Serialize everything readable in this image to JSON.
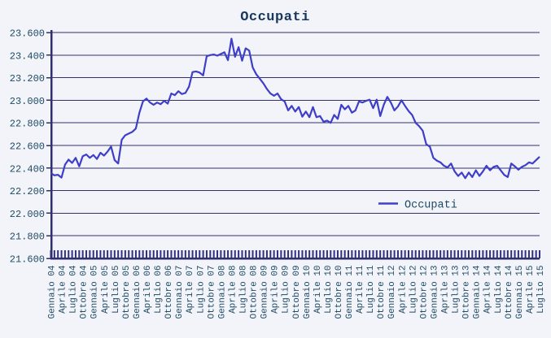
{
  "title": "Occupati",
  "colors": {
    "background": "#f3f4fa",
    "grid": "#32326b",
    "axis": "#2f2f6e",
    "month_tick": "#30307e",
    "series_line": "#3e3ec9",
    "label_text": "#1d4a63",
    "title_text": "#17375d"
  },
  "chart_data": {
    "type": "line",
    "title": "Occupati",
    "legend": [
      "Occupati"
    ],
    "legend_position": "inside lower right",
    "grid": "horizontal",
    "ylim": [
      21600,
      23600
    ],
    "y_tick_step": 200,
    "y_tick_values": [
      23600,
      23400,
      23200,
      23000,
      22800,
      22600,
      22400,
      22200,
      22000,
      21800,
      21600
    ],
    "y_tick_labels": [
      "23.600",
      "23.400",
      "23.200",
      "23.000",
      "22.800",
      "22.600",
      "22.400",
      "22.200",
      "22.000",
      "21.800",
      "21.600"
    ],
    "x_unit": "month",
    "x_start": "Gennaio 2004",
    "x_end": "Luglio 2015",
    "x_label_every_months": 3,
    "x_labels": [
      "Gennaio 04",
      "Aprile 04",
      "Luglio 04",
      "Ottobre 04",
      "Gennaio 05",
      "Aprile 05",
      "Luglio 05",
      "Ottobre 05",
      "Gennaio 06",
      "Aprile 06",
      "Luglio 06",
      "Ottobre 06",
      "Gennaio 07",
      "Aprile 07",
      "Luglio 07",
      "Ottobre 07",
      "Gennaio 08",
      "Aprile 08",
      "Luglio 08",
      "Ottobre 08",
      "Gennaio 09",
      "Aprile 09",
      "Luglio 09",
      "Ottobre 09",
      "Gennaio 10",
      "Aprile 10",
      "Luglio 10",
      "Ottobre 10",
      "Gennaio 11",
      "Aprile 11",
      "Luglio 11",
      "Ottobre 11",
      "Gennaio 12",
      "Aprile 12",
      "Luglio 12",
      "Ottobre 12",
      "Gennaio 13",
      "Aprile 13",
      "Luglio 13",
      "Ottobre 13",
      "Gennaio 14",
      "Aprile 14",
      "Luglio 14",
      "Ottobre 14",
      "Gennaio 15",
      "Aprile 15",
      "Luglio 15"
    ],
    "series": [
      {
        "name": "Occupati",
        "values": [
          22355,
          22335,
          22340,
          22315,
          22430,
          22475,
          22445,
          22490,
          22415,
          22505,
          22520,
          22490,
          22515,
          22480,
          22535,
          22510,
          22545,
          22590,
          22470,
          22440,
          22650,
          22690,
          22705,
          22720,
          22750,
          22890,
          22990,
          23015,
          22980,
          22960,
          22980,
          22965,
          22995,
          22970,
          23060,
          23045,
          23080,
          23055,
          23065,
          23120,
          23250,
          23255,
          23245,
          23220,
          23390,
          23400,
          23405,
          23395,
          23410,
          23425,
          23355,
          23545,
          23385,
          23470,
          23350,
          23460,
          23440,
          23290,
          23230,
          23190,
          23150,
          23100,
          23060,
          23040,
          23060,
          23010,
          22990,
          22910,
          22950,
          22900,
          22940,
          22855,
          22900,
          22850,
          22940,
          22850,
          22860,
          22810,
          22820,
          22800,
          22870,
          22835,
          22960,
          22920,
          22950,
          22890,
          22910,
          22990,
          22980,
          22995,
          23005,
          22930,
          23005,
          22860,
          22960,
          23030,
          22980,
          22910,
          22945,
          23000,
          22950,
          22905,
          22870,
          22800,
          22770,
          22730,
          22610,
          22590,
          22490,
          22465,
          22450,
          22420,
          22405,
          22440,
          22370,
          22330,
          22360,
          22310,
          22360,
          22320,
          22380,
          22330,
          22370,
          22420,
          22380,
          22410,
          22420,
          22380,
          22340,
          22320,
          22440,
          22415,
          22385,
          22410,
          22425,
          22450,
          22440,
          22470,
          22500
        ]
      }
    ]
  }
}
